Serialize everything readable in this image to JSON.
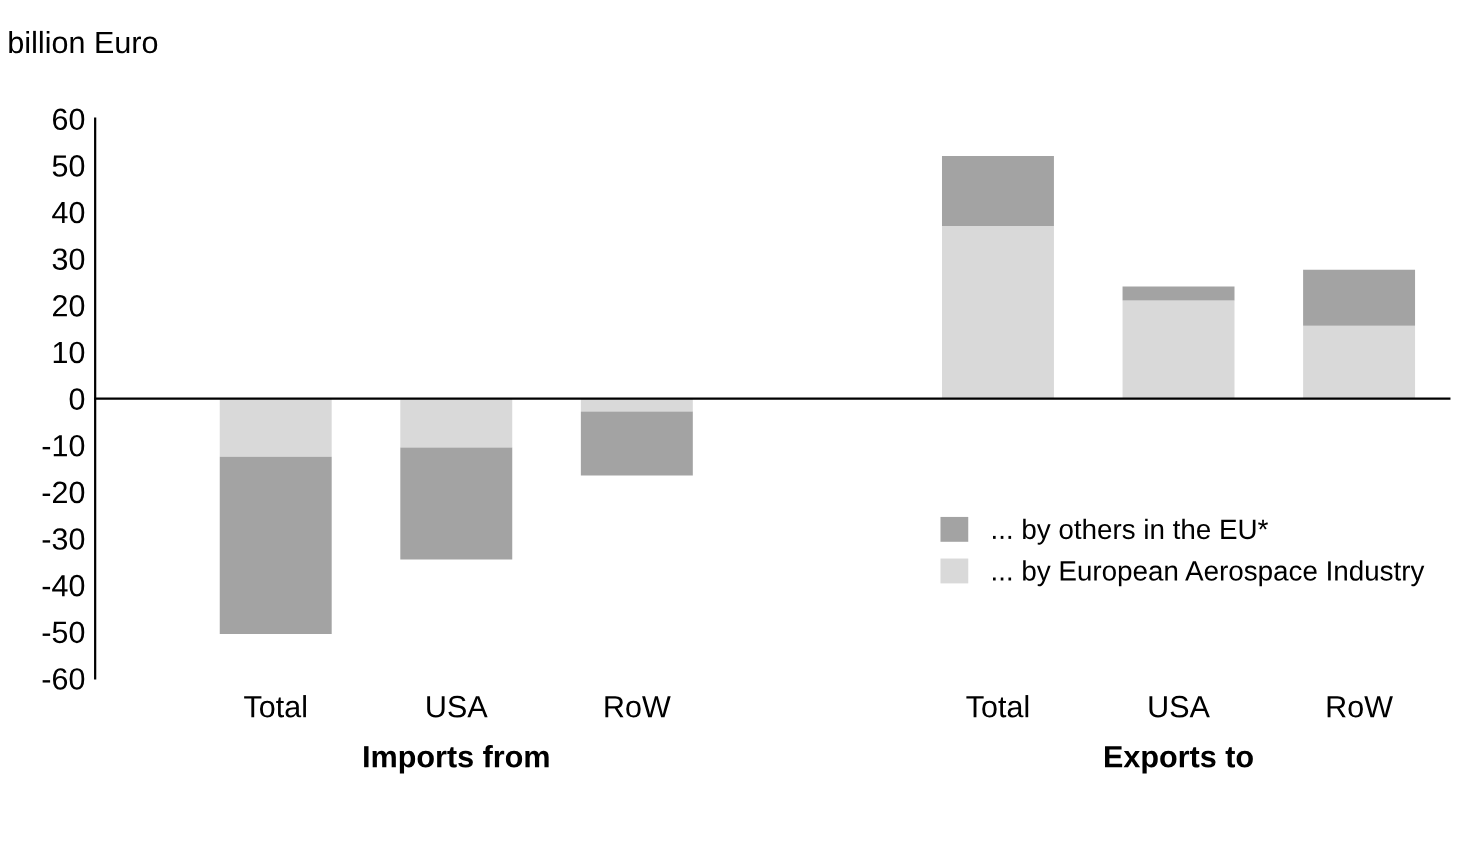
{
  "chart_data": {
    "type": "bar",
    "stacked": true,
    "ylabel": "billion Euro",
    "categories": [
      "Total",
      "USA",
      "RoW",
      null,
      "Total",
      "USA",
      "RoW"
    ],
    "series": [
      {
        "name": "... by European Aerospace Industry",
        "color": "#d9d9d9",
        "values": [
          -12.5,
          -10.5,
          -2.8,
          null,
          37,
          21,
          15.6
        ]
      },
      {
        "name": "... by others in the EU*",
        "color": "#a3a3a3",
        "values": [
          -38,
          -24,
          -13.7,
          null,
          15,
          3,
          12
        ]
      }
    ],
    "ylim": [
      -60,
      60
    ],
    "yticks": [
      -60,
      -50,
      -40,
      -30,
      -20,
      -10,
      0,
      10,
      20,
      30,
      40,
      50,
      60
    ],
    "legend": "bottom right",
    "annotations": [
      "Imports from",
      "Exports to"
    ]
  }
}
